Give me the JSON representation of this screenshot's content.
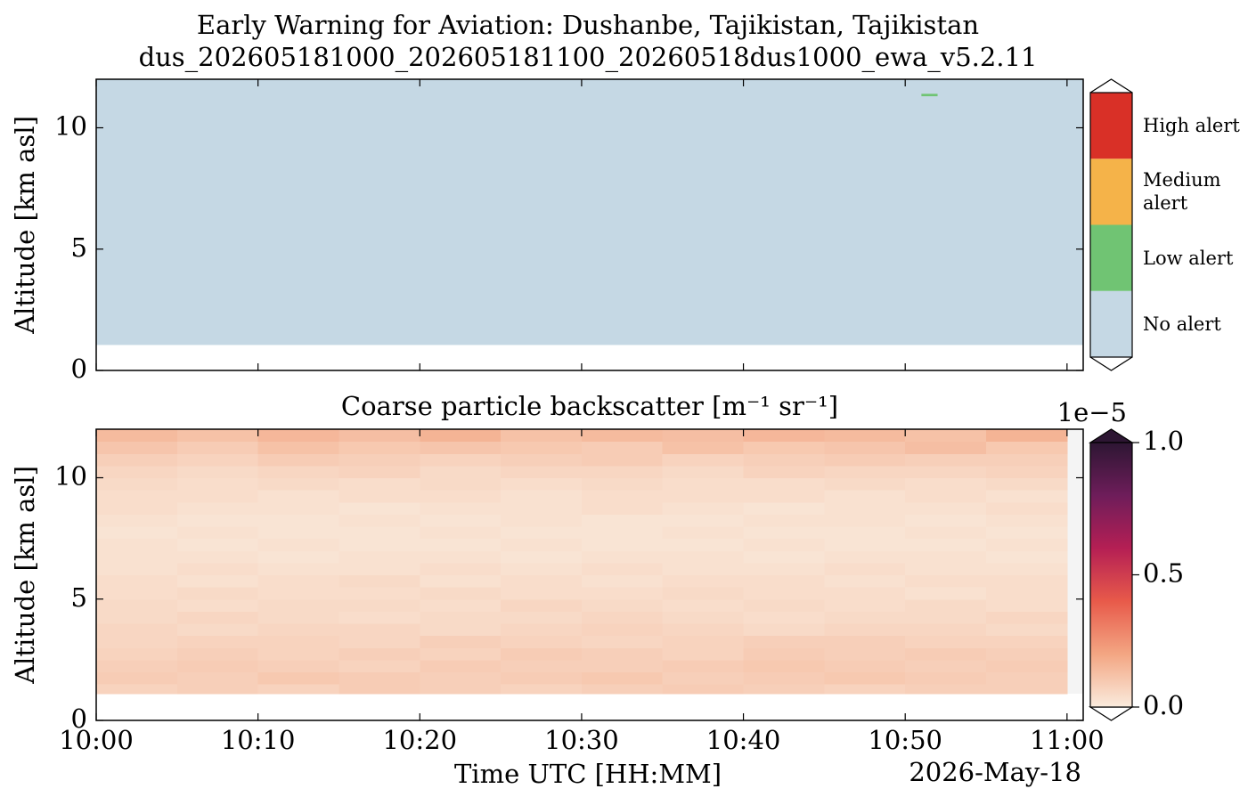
{
  "title": "Early Warning for Aviation: Dushanbe, Tajikistan, Tajikistan",
  "subtitle": "dus_202605181000_202605181100_20260518dus1000_ewa_v5.2.11",
  "chart_data": [
    {
      "type": "alert-heatmap",
      "ylabel": "Altitude [km asl]",
      "ylim": [
        0,
        12
      ],
      "yticks": [
        0,
        5,
        10
      ],
      "xlim": [
        "10:00",
        "11:01"
      ],
      "xticks": [
        "10:00",
        "10:10",
        "10:20",
        "10:30",
        "10:40",
        "10:50",
        "11:00"
      ],
      "levels": [
        "No alert",
        "Low alert",
        "Medium alert",
        "High alert"
      ],
      "colors": [
        "#c5d8e4",
        "#70c473",
        "#f5b349",
        "#d93027"
      ],
      "cells": [
        {
          "start": "10:00",
          "end": "11:01",
          "bottom": 1.05,
          "top": 12,
          "level": 0
        },
        {
          "start": "10:51",
          "end": "10:52",
          "bottom": 11.3,
          "top": 11.4,
          "level": 1
        }
      ]
    },
    {
      "type": "heatmap",
      "title": "Coarse particle backscatter [m⁻¹ sr⁻¹]",
      "ylabel": "Altitude [km asl]",
      "xlabel": "Time UTC [HH:MM]",
      "date_label": "2026-May-18",
      "ylim": [
        0,
        12
      ],
      "yticks": [
        0,
        5,
        10
      ],
      "xlim": [
        "10:00",
        "11:01"
      ],
      "xticks": [
        "10:00",
        "10:10",
        "10:20",
        "10:30",
        "10:40",
        "10:50",
        "11:00"
      ],
      "background": "#f4f4f4",
      "x": [
        "10:00",
        "10:05",
        "10:10",
        "10:15",
        "10:20",
        "10:25",
        "10:30",
        "10:35",
        "10:40",
        "10:45",
        "10:50",
        "10:55",
        "11:00"
      ],
      "y": [
        1.1,
        1.5,
        2.0,
        2.5,
        3.0,
        3.5,
        4.0,
        4.5,
        5.0,
        5.5,
        6.0,
        6.5,
        7.0,
        7.5,
        8.0,
        8.5,
        9.0,
        9.5,
        10.0,
        10.5,
        11.0,
        11.5,
        12.0
      ],
      "values": [
        [
          7e-07,
          8e-07,
          7e-07,
          9e-07,
          8e-07,
          7e-07,
          8e-07,
          9e-07,
          8e-07,
          7e-07,
          8e-07,
          8e-07
        ],
        [
          9e-07,
          8e-07,
          1e-06,
          9e-07,
          8e-07,
          9e-07,
          1e-06,
          8e-07,
          9e-07,
          1e-06,
          9e-07,
          8e-07
        ],
        [
          8e-07,
          9e-07,
          8e-07,
          7e-07,
          9e-07,
          8e-07,
          8e-07,
          9e-07,
          1e-06,
          9e-07,
          8e-07,
          9e-07
        ],
        [
          7e-07,
          8e-07,
          7e-07,
          8e-07,
          7e-07,
          9e-07,
          8e-07,
          7e-07,
          9e-07,
          8e-07,
          9e-07,
          8e-07
        ],
        [
          6e-07,
          7e-07,
          7e-07,
          6e-07,
          8e-07,
          7e-07,
          6e-07,
          7e-07,
          8e-07,
          8e-07,
          7e-07,
          7e-07
        ],
        [
          6e-07,
          5e-07,
          6e-07,
          6e-07,
          5e-07,
          6e-07,
          7e-07,
          6e-07,
          5e-07,
          6e-07,
          6e-07,
          5e-07
        ],
        [
          5e-07,
          6e-07,
          5e-07,
          4e-07,
          5e-07,
          5e-07,
          6e-07,
          5e-07,
          4e-07,
          5e-07,
          5e-07,
          6e-07
        ],
        [
          5e-07,
          4e-07,
          5e-07,
          5e-07,
          4e-07,
          6e-07,
          5e-07,
          4e-07,
          5e-07,
          4e-07,
          5e-07,
          4e-07
        ],
        [
          4e-07,
          5e-07,
          4e-07,
          4e-07,
          5e-07,
          4e-07,
          4e-07,
          5e-07,
          4e-07,
          4e-07,
          3e-07,
          4e-07
        ],
        [
          4e-07,
          3e-07,
          4e-07,
          5e-07,
          3e-07,
          4e-07,
          3e-07,
          4e-07,
          4e-07,
          3e-07,
          4e-07,
          4e-07
        ],
        [
          3e-07,
          4e-07,
          3e-07,
          3e-07,
          4e-07,
          3e-07,
          4e-07,
          3e-07,
          3e-07,
          4e-07,
          3e-07,
          3e-07
        ],
        [
          3e-07,
          3e-07,
          2e-07,
          3e-07,
          3e-07,
          2e-07,
          3e-07,
          3e-07,
          2e-07,
          3e-07,
          3e-07,
          2e-07
        ],
        [
          3e-07,
          2e-07,
          3e-07,
          2e-07,
          2e-07,
          3e-07,
          2e-07,
          2e-07,
          3e-07,
          2e-07,
          2e-07,
          3e-07
        ],
        [
          2e-07,
          3e-07,
          2e-07,
          2e-07,
          3e-07,
          2e-07,
          2e-07,
          3e-07,
          2e-07,
          2e-07,
          3e-07,
          2e-07
        ],
        [
          3e-07,
          2e-07,
          2e-07,
          3e-07,
          2e-07,
          3e-07,
          2e-07,
          2e-07,
          3e-07,
          3e-07,
          2e-07,
          3e-07
        ],
        [
          4e-07,
          3e-07,
          3e-07,
          2e-07,
          3e-07,
          3e-07,
          4e-07,
          3e-07,
          2e-07,
          3e-07,
          3e-07,
          4e-07
        ],
        [
          4e-07,
          4e-07,
          3e-07,
          4e-07,
          4e-07,
          3e-07,
          4e-07,
          4e-07,
          4e-07,
          3e-07,
          4e-07,
          3e-07
        ],
        [
          5e-07,
          4e-07,
          5e-07,
          4e-07,
          5e-07,
          4e-07,
          5e-07,
          4e-07,
          4e-07,
          5e-07,
          4e-07,
          5e-07
        ],
        [
          6e-07,
          5e-07,
          6e-07,
          7e-07,
          5e-07,
          6e-07,
          6e-07,
          5e-07,
          7e-07,
          6e-07,
          6e-07,
          7e-07
        ],
        [
          8e-07,
          7e-07,
          9e-07,
          8e-07,
          7e-07,
          8e-07,
          9e-07,
          7e-07,
          8e-07,
          9e-07,
          8e-07,
          8e-07
        ],
        [
          1.1e-06,
          9e-07,
          1.2e-06,
          1e-06,
          1.1e-06,
          1e-06,
          9e-07,
          1.2e-06,
          1e-06,
          1.1e-06,
          1.3e-06,
          1e-06
        ],
        [
          1.4e-06,
          1.2e-06,
          1.5e-06,
          1.3e-06,
          1.6e-06,
          1.2e-06,
          1.4e-06,
          1.3e-06,
          1.5e-06,
          1.4e-06,
          1.2e-06,
          1.6e-06
        ]
      ],
      "clim": [
        0,
        1e-05
      ],
      "cticks": [
        {
          "value": 0,
          "label": "0.0"
        },
        {
          "value": 5e-06,
          "label": "0.5"
        },
        {
          "value": 1e-05,
          "label": "1.0"
        }
      ],
      "coffset": "1e−5",
      "colormap": [
        "#faebdd",
        "#f3a683",
        "#e85a4a",
        "#b51f54",
        "#6e1d5a",
        "#2d1633"
      ]
    }
  ]
}
